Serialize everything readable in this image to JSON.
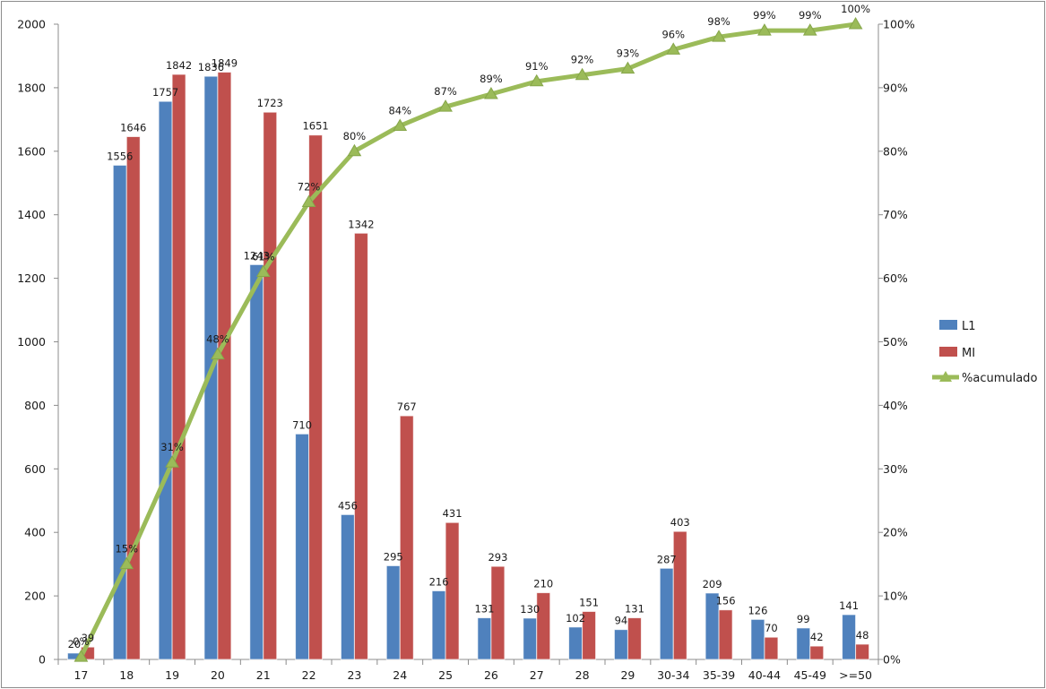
{
  "chart_data": {
    "type": "bar",
    "categories": [
      "17",
      "18",
      "19",
      "20",
      "21",
      "22",
      "23",
      "24",
      "25",
      "26",
      "27",
      "28",
      "29",
      "30-34",
      "35-39",
      "40-44",
      "45-49",
      ">=50"
    ],
    "series": [
      {
        "name": "L1",
        "kind": "bar",
        "color": "#4f81bd",
        "values": [
          20,
          1556,
          1757,
          1836,
          1243,
          710,
          456,
          295,
          216,
          131,
          130,
          102,
          94,
          287,
          209,
          126,
          99,
          141
        ],
        "labels": [
          "20",
          "1556",
          "1757",
          "1836",
          "1243",
          "710",
          "456",
          "295",
          "216",
          "131",
          "130",
          "102",
          "94",
          "287",
          "209",
          "126",
          "99",
          "141"
        ]
      },
      {
        "name": "MI",
        "kind": "bar",
        "color": "#c0504d",
        "values": [
          39,
          1646,
          1842,
          1849,
          1723,
          1651,
          1342,
          767,
          431,
          293,
          210,
          151,
          131,
          403,
          156,
          70,
          42,
          48
        ],
        "labels": [
          "39",
          "1646",
          "1842",
          "1849",
          "1723",
          "1651",
          "1342",
          "767",
          "431",
          "293",
          "210",
          "151",
          "131",
          "403",
          "156",
          "70",
          "42",
          "48"
        ]
      },
      {
        "name": "%acumulado",
        "kind": "line",
        "axis": "right",
        "color": "#9bbb59",
        "marker": "triangle",
        "values": [
          0.4,
          15,
          31,
          48,
          61,
          72,
          80,
          84,
          87,
          89,
          91,
          92,
          93,
          96,
          98,
          99,
          99,
          100
        ],
        "labels": [
          "0%",
          "15%",
          "31%",
          "48%",
          "61%",
          "72%",
          "80%",
          "84%",
          "87%",
          "89%",
          "91%",
          "92%",
          "93%",
          "96%",
          "98%",
          "99%",
          "99%",
          "100%"
        ]
      }
    ],
    "left_axis": {
      "ylim": [
        0,
        2000
      ],
      "ticks": [
        "0",
        "200",
        "400",
        "600",
        "800",
        "1000",
        "1200",
        "1400",
        "1600",
        "1800",
        "2000"
      ]
    },
    "right_axis": {
      "ylim": [
        0,
        100
      ],
      "ticks": [
        "0%",
        "10%",
        "20%",
        "30%",
        "40%",
        "50%",
        "60%",
        "70%",
        "80%",
        "90%",
        "100%"
      ]
    },
    "grid": false,
    "legend": "right"
  }
}
